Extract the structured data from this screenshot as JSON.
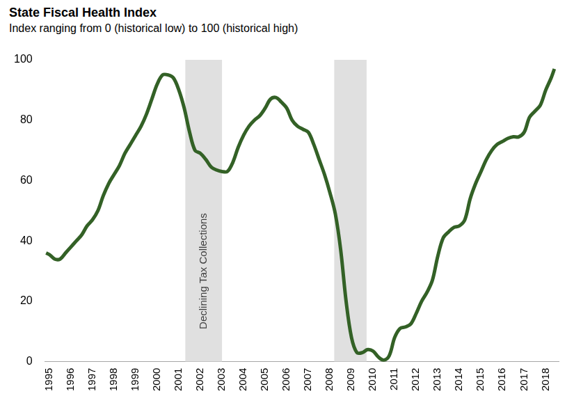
{
  "chart_data": {
    "type": "line",
    "title": "State Fiscal Health Index",
    "subtitle": "Index ranging from 0 (historical low) to 100 (historical high)",
    "color": "#336126",
    "grid": false,
    "xlim": [
      1994.8,
      2018.6
    ],
    "xticks": [
      1995,
      1996,
      1997,
      1998,
      1999,
      2000,
      2001,
      2002,
      2003,
      2004,
      2005,
      2006,
      2007,
      2008,
      2009,
      2010,
      2011,
      2012,
      2013,
      2014,
      2015,
      2016,
      2017,
      2018
    ],
    "ylim": [
      0,
      100
    ],
    "yticks": [
      0,
      20,
      40,
      60,
      80,
      100
    ],
    "annotations": [
      {
        "x_start": 2001.3,
        "x_end": 2003.0,
        "label": "Declining Tax Collections"
      },
      {
        "x_start": 2008.2,
        "x_end": 2009.7
      }
    ],
    "x": [
      1994.85,
      1995.0,
      1995.25,
      1995.5,
      1995.75,
      1996.0,
      1996.25,
      1996.5,
      1996.75,
      1997.0,
      1997.25,
      1997.5,
      1997.75,
      1998.0,
      1998.25,
      1998.5,
      1998.75,
      1999.0,
      1999.25,
      1999.5,
      1999.75,
      2000.0,
      2000.25,
      2000.5,
      2000.75,
      2001.0,
      2001.25,
      2001.5,
      2001.75,
      2002.0,
      2002.25,
      2002.5,
      2002.75,
      2003.0,
      2003.25,
      2003.5,
      2003.75,
      2004.0,
      2004.25,
      2004.5,
      2004.75,
      2005.0,
      2005.25,
      2005.5,
      2005.75,
      2006.0,
      2006.25,
      2006.5,
      2006.75,
      2007.0,
      2007.25,
      2007.5,
      2007.75,
      2008.0,
      2008.25,
      2008.5,
      2008.75,
      2009.0,
      2009.25,
      2009.5,
      2009.75,
      2010.0,
      2010.25,
      2010.5,
      2010.75,
      2011.0,
      2011.25,
      2011.5,
      2011.75,
      2012.0,
      2012.25,
      2012.5,
      2012.75,
      2013.0,
      2013.25,
      2013.5,
      2013.75,
      2014.0,
      2014.25,
      2014.5,
      2014.75,
      2015.0,
      2015.25,
      2015.5,
      2015.75,
      2016.0,
      2016.25,
      2016.5,
      2016.75,
      2017.0,
      2017.25,
      2017.5,
      2017.75,
      2018.0,
      2018.25,
      2018.4
    ],
    "values": [
      36,
      35.5,
      34,
      34,
      36,
      38,
      40,
      42,
      45,
      47,
      50,
      55,
      59,
      62,
      65,
      69,
      72,
      75,
      78,
      82,
      87,
      92,
      95,
      95,
      94,
      90,
      84,
      76,
      70,
      69,
      67,
      64.5,
      63.5,
      63,
      63,
      66,
      71,
      75,
      78,
      80,
      81.5,
      84,
      87,
      87.5,
      86,
      84,
      80,
      78,
      77,
      76,
      72,
      67,
      62,
      56,
      49,
      37,
      20,
      8,
      3,
      3,
      4,
      3.5,
      1.5,
      0.5,
      2,
      8,
      11,
      11.5,
      12.5,
      16,
      20,
      23,
      27,
      35,
      41,
      43,
      44.5,
      45,
      47,
      54,
      59,
      63,
      67,
      70,
      72,
      73,
      74,
      74.5,
      74.5,
      76,
      81,
      83,
      85,
      90,
      94,
      97
    ]
  }
}
